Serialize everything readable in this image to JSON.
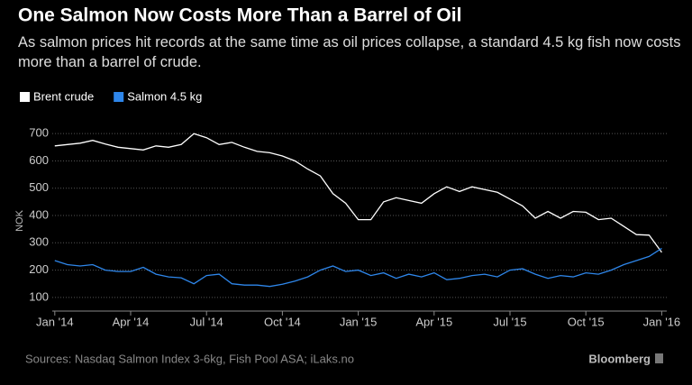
{
  "chart_data": {
    "type": "line",
    "title": "One Salmon Now Costs More Than a Barrel of Oil",
    "subtitle": "As salmon prices hit records at the same time as oil prices collapse, a standard 4.5 kg fish now costs more than a barrel of crude.",
    "y_label": "NOK",
    "source": "Sources: Nasdaq Salmon Index 3-6kg, Fish Pool ASA; iLaks.no",
    "brand": "Bloomberg",
    "legend": "top-left",
    "grid": true,
    "x": [
      0,
      0.5,
      1,
      1.5,
      2,
      2.5,
      3,
      3.5,
      4,
      4.5,
      5,
      5.5,
      6,
      6.5,
      7,
      7.5,
      8,
      8.5,
      9,
      9.5,
      10,
      10.5,
      11,
      11.5,
      12,
      12.5,
      13,
      13.5,
      14,
      14.5,
      15,
      15.5,
      16,
      16.5,
      17,
      17.5,
      18,
      18.5,
      19,
      19.5,
      20,
      20.5,
      21,
      21.5,
      22,
      22.5,
      23,
      23.5,
      24
    ],
    "xlim": [
      -0.1,
      24.2
    ],
    "xticks": [
      {
        "value": 0,
        "label": "Jan '14"
      },
      {
        "value": 3,
        "label": "Apr '14"
      },
      {
        "value": 6,
        "label": "Jul '14"
      },
      {
        "value": 9,
        "label": "Oct '14"
      },
      {
        "value": 12,
        "label": "Jan '15"
      },
      {
        "value": 15,
        "label": "Apr '15"
      },
      {
        "value": 18,
        "label": "Jul '15"
      },
      {
        "value": 21,
        "label": "Oct '15"
      },
      {
        "value": 24,
        "label": "Jan '16"
      }
    ],
    "ylim": [
      50,
      760
    ],
    "yticks": [
      100,
      200,
      300,
      400,
      500,
      600,
      700
    ],
    "series": [
      {
        "name": "Brent crude",
        "color": "#ffffff",
        "values": [
          655,
          660,
          665,
          675,
          662,
          650,
          645,
          640,
          655,
          650,
          660,
          700,
          685,
          660,
          668,
          650,
          635,
          630,
          618,
          600,
          570,
          545,
          480,
          445,
          385,
          385,
          450,
          465,
          455,
          445,
          480,
          505,
          488,
          505,
          495,
          485,
          460,
          435,
          390,
          415,
          390,
          415,
          412,
          385,
          390,
          360,
          330,
          328,
          265
        ]
      },
      {
        "name": "Salmon 4.5 kg",
        "color": "#2e86ea",
        "values": [
          235,
          220,
          215,
          220,
          200,
          195,
          195,
          210,
          185,
          175,
          172,
          150,
          180,
          185,
          150,
          145,
          145,
          140,
          148,
          160,
          175,
          200,
          215,
          195,
          200,
          180,
          190,
          170,
          185,
          175,
          190,
          165,
          170,
          180,
          185,
          175,
          200,
          205,
          185,
          170,
          180,
          175,
          190,
          185,
          200,
          220,
          235,
          250,
          280
        ]
      }
    ]
  }
}
